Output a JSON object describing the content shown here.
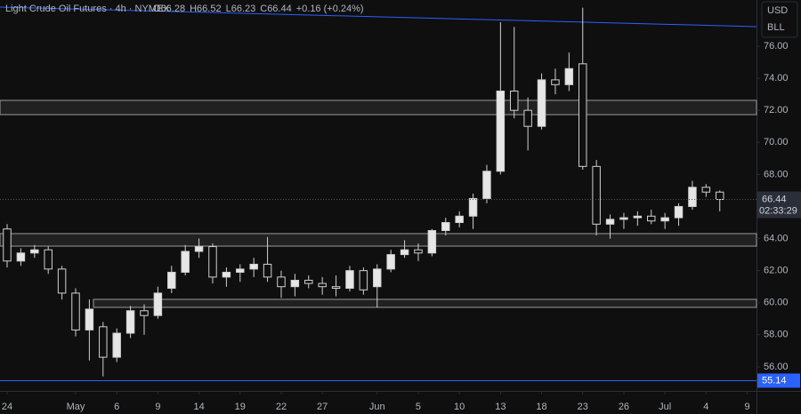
{
  "chart_data": {
    "type": "candlestick",
    "title": "Light Crude Oil Futures · 4h · NYMEX",
    "ohlc_legend": [
      {
        "label": "O",
        "value": 66.28
      },
      {
        "label": "H",
        "value": 66.52
      },
      {
        "label": "L",
        "value": 66.23
      },
      {
        "label": "C",
        "value": 66.44
      }
    ],
    "change": "+0.16 (+0.24%)",
    "currency": "USD",
    "unit": "BLL",
    "open": [
      64.6,
      62.6,
      63.1,
      63.3,
      62.1,
      60.6,
      58.3,
      58.5,
      56.6,
      58.1,
      59.5,
      59.2,
      60.9,
      61.9,
      63.2,
      63.5,
      61.6,
      61.9,
      62.1,
      62.4,
      61.6,
      61.0,
      61.4,
      61.2,
      61.0,
      60.9,
      62.0,
      61.0,
      62.1,
      63.0,
      63.3,
      63.1,
      64.5,
      65.0,
      65.4,
      66.5,
      68.2,
      73.2,
      72.0,
      71.0,
      73.9,
      73.6,
      74.9,
      68.5,
      64.9,
      65.2,
      65.3,
      65.4,
      65.1,
      65.3,
      66.0,
      67.2,
      66.9
    ],
    "high": [
      64.9,
      63.4,
      63.6,
      63.5,
      62.3,
      60.9,
      60.2,
      58.8,
      58.4,
      59.8,
      59.9,
      61.0,
      62.3,
      63.6,
      64.0,
      63.7,
      62.2,
      62.4,
      62.8,
      64.1,
      62.0,
      61.8,
      61.7,
      61.6,
      61.7,
      62.3,
      62.2,
      62.4,
      63.3,
      63.9,
      63.7,
      64.6,
      65.3,
      65.7,
      66.8,
      68.6,
      77.5,
      77.2,
      72.8,
      74.3,
      74.6,
      75.6,
      78.4,
      68.9,
      65.5,
      65.6,
      65.7,
      65.8,
      65.6,
      66.2,
      67.6,
      67.4,
      67.0
    ],
    "low": [
      62.2,
      62.3,
      62.8,
      61.8,
      60.2,
      57.9,
      56.4,
      55.4,
      56.3,
      57.8,
      58.0,
      59.0,
      60.6,
      61.7,
      62.8,
      61.2,
      61.0,
      61.3,
      61.6,
      61.3,
      60.3,
      60.4,
      60.9,
      60.5,
      60.4,
      60.7,
      60.5,
      59.7,
      61.9,
      62.8,
      62.6,
      62.9,
      64.2,
      64.7,
      64.6,
      66.2,
      68.0,
      71.5,
      69.5,
      70.8,
      73.0,
      73.2,
      68.3,
      64.2,
      64.0,
      64.6,
      64.8,
      64.9,
      64.6,
      64.8,
      65.8,
      66.6,
      65.7
    ],
    "close": [
      62.6,
      63.1,
      63.3,
      62.1,
      60.6,
      58.3,
      59.6,
      56.6,
      58.1,
      59.5,
      59.2,
      60.6,
      61.9,
      63.2,
      63.5,
      61.6,
      61.9,
      62.1,
      62.4,
      61.6,
      61.0,
      61.4,
      61.2,
      61.0,
      60.9,
      62.0,
      60.8,
      62.1,
      63.0,
      63.3,
      63.1,
      64.5,
      65.0,
      65.4,
      66.5,
      68.2,
      73.2,
      72.0,
      71.0,
      73.9,
      73.6,
      74.6,
      68.5,
      64.9,
      65.2,
      65.3,
      65.4,
      65.1,
      65.3,
      66.0,
      67.2,
      66.9,
      66.44
    ],
    "xlim": [
      -0.52,
      54.68
    ],
    "xticks": [
      {
        "value": 0,
        "label": "24"
      },
      {
        "value": 5,
        "label": "May"
      },
      {
        "value": 8,
        "label": "6"
      },
      {
        "value": 11,
        "label": "9"
      },
      {
        "value": 14,
        "label": "14"
      },
      {
        "value": 17,
        "label": "19"
      },
      {
        "value": 20,
        "label": "22"
      },
      {
        "value": 23,
        "label": "27"
      },
      {
        "value": 27,
        "label": "Jun"
      },
      {
        "value": 30,
        "label": "5"
      },
      {
        "value": 33,
        "label": "10"
      },
      {
        "value": 36,
        "label": "13"
      },
      {
        "value": 39,
        "label": "18"
      },
      {
        "value": 42,
        "label": "23"
      },
      {
        "value": 45,
        "label": "26"
      },
      {
        "value": 48,
        "label": "Jul"
      },
      {
        "value": 51,
        "label": "4"
      },
      {
        "value": 54,
        "label": "9"
      }
    ],
    "ylim": [
      54.5,
      78.88
    ],
    "yticks": [
      {
        "value": 56,
        "label": "56.00"
      },
      {
        "value": 58,
        "label": "58.00"
      },
      {
        "value": 60,
        "label": "60.00"
      },
      {
        "value": 62,
        "label": "62.00"
      },
      {
        "value": 64,
        "label": "64.00"
      },
      {
        "value": 66,
        "label": "66.00"
      },
      {
        "value": 68,
        "label": "68.00"
      },
      {
        "value": 70,
        "label": "70.00"
      },
      {
        "value": 72,
        "label": "72.00"
      },
      {
        "value": 74,
        "label": "74.00"
      },
      {
        "value": 76,
        "label": "76.00"
      }
    ],
    "zones": [
      {
        "low": 71.73,
        "high": 72.62,
        "start": -0.52
      },
      {
        "low": 63.53,
        "high": 64.31,
        "start": -0.52
      },
      {
        "low": 59.71,
        "high": 60.21,
        "start": 6.3
      }
    ],
    "trendline": {
      "x": [
        -0.52,
        54.68
      ],
      "y": [
        78.44,
        77.22
      ],
      "color": "#2962ff"
    },
    "hline": {
      "value": 55.14,
      "label": "55.14",
      "color": "#2962ff"
    },
    "last_price": {
      "value": 66.44,
      "label": "66.44",
      "countdown": "02:33:29"
    },
    "up_color": "#e6e6e6",
    "down_color": "#0f0f0f"
  }
}
